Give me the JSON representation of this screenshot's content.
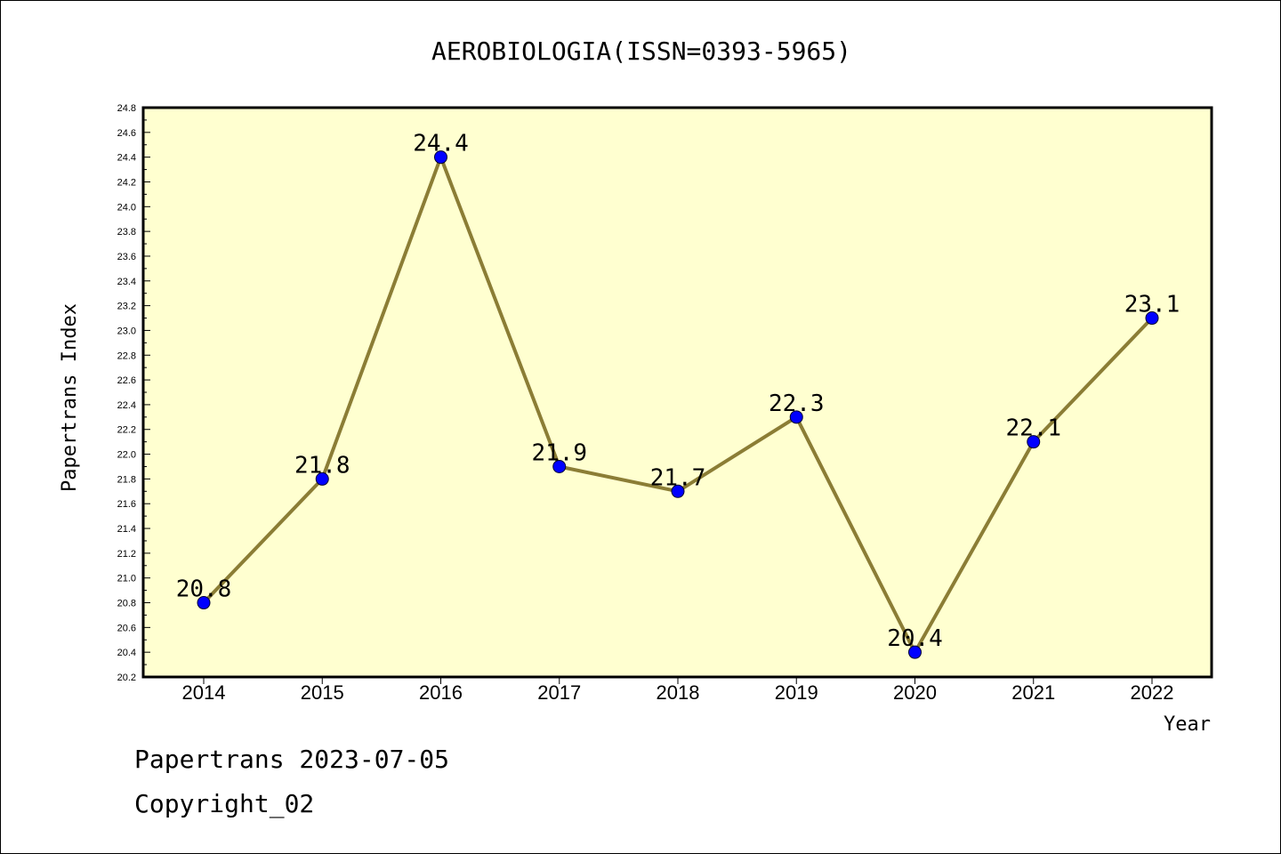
{
  "chart_data": {
    "type": "line",
    "title": "AEROBIOLOGIA(ISSN=0393-5965)",
    "xlabel": "Year",
    "ylabel": "Papertrans Index",
    "categories": [
      "2014",
      "2015",
      "2016",
      "2017",
      "2018",
      "2019",
      "2020",
      "2021",
      "2022"
    ],
    "values": [
      20.8,
      21.8,
      24.4,
      21.9,
      21.7,
      22.3,
      20.4,
      22.1,
      23.1
    ],
    "data_labels": [
      "20.8",
      "21.8",
      "24.4",
      "21.9",
      "21.7",
      "22.3",
      "20.4",
      "22.1",
      "23.1"
    ],
    "ylim": [
      20.2,
      24.8
    ],
    "yticks": [
      "20.2",
      "20.4",
      "20.6",
      "20.8",
      "21.0",
      "21.2",
      "21.4",
      "21.6",
      "21.8",
      "22.0",
      "22.2",
      "22.4",
      "22.6",
      "22.8",
      "23.0",
      "23.2",
      "23.4",
      "23.6",
      "23.8",
      "24.0",
      "24.2",
      "24.4",
      "24.6",
      "24.8"
    ],
    "grid": false,
    "legend": "none",
    "colors": {
      "plot_background": "#ffffd0",
      "line": "#8b7d35",
      "marker": "#0000ff"
    }
  },
  "footer": {
    "line1": "Papertrans 2023-07-05",
    "line2": "Copyright_02"
  }
}
